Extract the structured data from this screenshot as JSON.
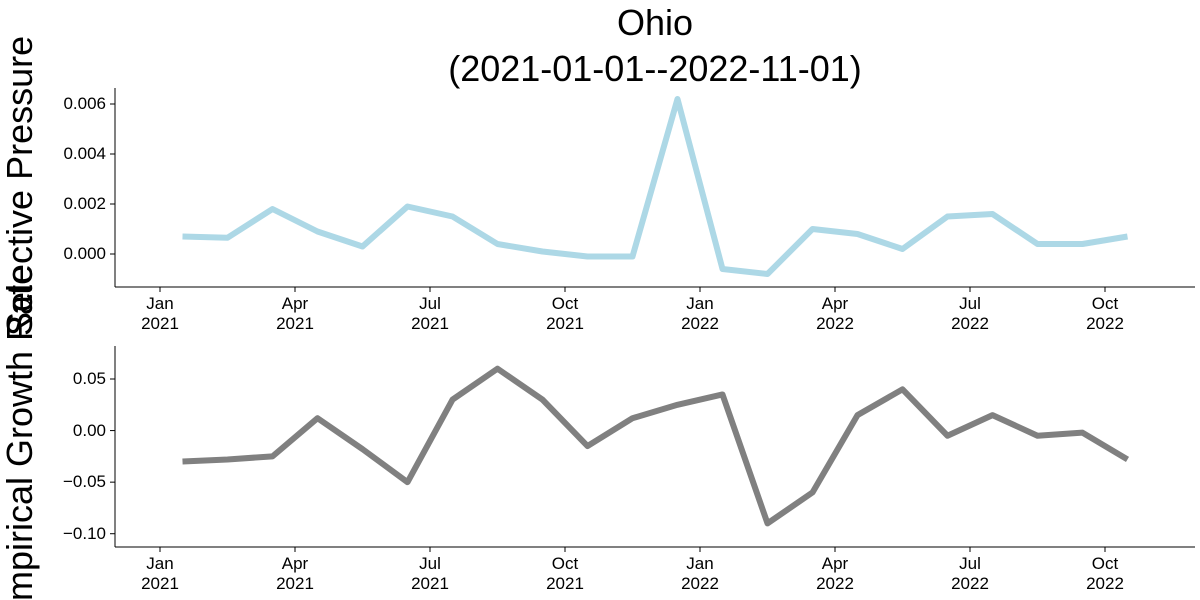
{
  "chart_data": [
    {
      "type": "line",
      "title": "Ohio\n(2021-01-01--2022-11-01)",
      "ylabel": "Selective Pressure",
      "x": [
        "2021-01",
        "2021-02",
        "2021-03",
        "2021-04",
        "2021-05",
        "2021-06",
        "2021-07",
        "2021-08",
        "2021-09",
        "2021-10",
        "2021-11",
        "2021-12",
        "2022-01",
        "2022-02",
        "2022-03",
        "2022-04",
        "2022-05",
        "2022-06",
        "2022-07",
        "2022-08",
        "2022-09",
        "2022-10"
      ],
      "series": [
        {
          "color": "#add8e6",
          "values": [
            0.0007,
            0.00065,
            0.0018,
            0.0009,
            0.0003,
            0.0019,
            0.0015,
            0.0004,
            0.0001,
            -0.0001,
            -0.0001,
            0.0062,
            -0.0006,
            -0.0008,
            0.001,
            0.0008,
            0.0002,
            0.0015,
            0.0016,
            0.0004,
            0.0004,
            0.0007
          ]
        }
      ],
      "xlim": [
        "2020-12",
        "2022-12"
      ],
      "xticks": [
        {
          "value": "2021-01",
          "label": "Jan\n2021"
        },
        {
          "value": "2021-04",
          "label": "Apr\n2021"
        },
        {
          "value": "2021-07",
          "label": "Jul\n2021"
        },
        {
          "value": "2021-10",
          "label": "Oct\n2021"
        },
        {
          "value": "2022-01",
          "label": "Jan\n2022"
        },
        {
          "value": "2022-04",
          "label": "Apr\n2022"
        },
        {
          "value": "2022-07",
          "label": "Jul\n2022"
        },
        {
          "value": "2022-10",
          "label": "Oct\n2022"
        }
      ],
      "ylim": [
        -0.00116,
        0.00664
      ],
      "yticks": [
        {
          "value": 0,
          "label": "0.000"
        },
        {
          "value": 0.002,
          "label": "0.002"
        },
        {
          "value": 0.004,
          "label": "0.004"
        },
        {
          "value": 0.006,
          "label": "0.006"
        }
      ]
    },
    {
      "type": "line",
      "ylabel": "Empirical Growth Rate",
      "x": [
        "2021-01",
        "2021-02",
        "2021-03",
        "2021-04",
        "2021-05",
        "2021-06",
        "2021-07",
        "2021-08",
        "2021-09",
        "2021-10",
        "2021-11",
        "2021-12",
        "2022-01",
        "2022-02",
        "2022-03",
        "2022-04",
        "2022-05",
        "2022-06",
        "2022-07",
        "2022-08",
        "2022-09",
        "2022-10"
      ],
      "series": [
        {
          "color": "#808080",
          "values": [
            -0.03,
            -0.028,
            -0.025,
            0.012,
            -0.018,
            -0.05,
            0.03,
            0.06,
            0.03,
            -0.015,
            0.012,
            0.025,
            0.035,
            -0.09,
            -0.06,
            0.015,
            0.04,
            -0.005,
            0.015,
            -0.005,
            -0.002,
            -0.028
          ]
        }
      ],
      "xlim": [
        "2020-12",
        "2022-12"
      ],
      "xticks": [
        {
          "value": "2021-01",
          "label": "Jan\n2021"
        },
        {
          "value": "2021-04",
          "label": "Apr\n2021"
        },
        {
          "value": "2021-07",
          "label": "Jul\n2021"
        },
        {
          "value": "2021-10",
          "label": "Oct\n2021"
        },
        {
          "value": "2022-01",
          "label": "Jan\n2022"
        },
        {
          "value": "2022-04",
          "label": "Apr\n2022"
        },
        {
          "value": "2022-07",
          "label": "Jul\n2022"
        },
        {
          "value": "2022-10",
          "label": "Oct\n2022"
        }
      ],
      "ylim": [
        -0.109,
        0.082
      ],
      "yticks": [
        {
          "value": -0.1,
          "label": "−0.10"
        },
        {
          "value": -0.05,
          "label": "−0.05"
        },
        {
          "value": 0,
          "label": "0.00"
        },
        {
          "value": 0.05,
          "label": "0.05"
        }
      ]
    }
  ]
}
